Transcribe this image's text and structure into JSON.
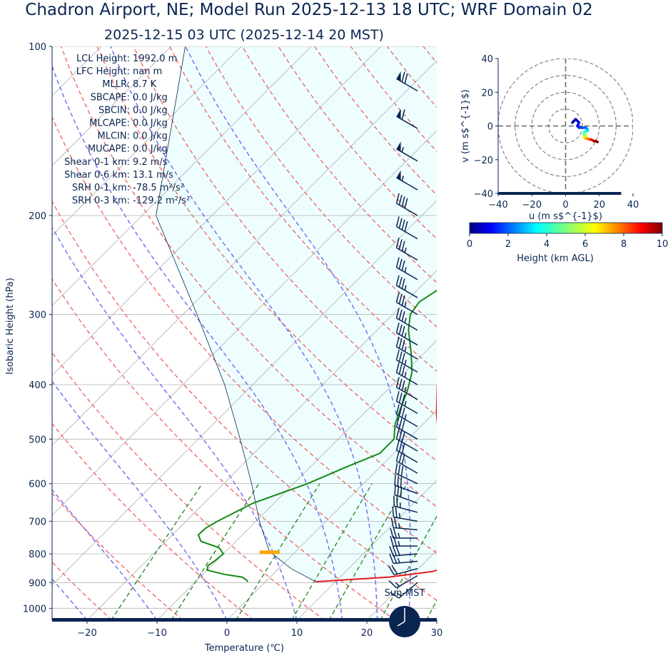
{
  "title": "Chadron Airport, NE; Model Run 2025-12-13 18 UTC; WRF Domain 02",
  "subtitle": "2025-12-15 03 UTC  (2025-12-14 20 MST)",
  "colors": {
    "text": "#0a2552",
    "temperature": "#e31a1c",
    "dewpoint": "#138a13",
    "dry_adiabat": "#f26b6b",
    "moist_adiabat": "#6b6bf0",
    "mixing_ratio": "#2b8a2b",
    "cape_shading": "#eefefe",
    "lcl_marker": "#ffa500",
    "wind_barb": "#0a2552"
  },
  "indices": [
    {
      "label": "LCL Height",
      "value": "1992.0 m"
    },
    {
      "label": "LFC Height",
      "value": "nan m"
    },
    {
      "label": "MLLR",
      "value": "8.7 K"
    },
    {
      "label": "SBCAPE",
      "value": "0.0 J/kg"
    },
    {
      "label": "SBCIN",
      "value": "0.0 J/kg"
    },
    {
      "label": "MLCAPE",
      "value": "0.0 J/kg"
    },
    {
      "label": "MLCIN",
      "value": "0.0 J/kg"
    },
    {
      "label": "MUCAPE",
      "value": "0.0 J/kg"
    },
    {
      "label": "Shear 0-1 km",
      "value": "9.2 m/s"
    },
    {
      "label": "Shear 0-6 km",
      "value": "13.1 m/s"
    },
    {
      "label": "SRH 0-1 km",
      "value": "-78.5 m²/s²"
    },
    {
      "label": "SRH 0-3 km",
      "value": "-129.2 m²/s²"
    }
  ],
  "clock_label": "Sun-MST",
  "chart_data": [
    {
      "type": "skew-t",
      "xlabel": "Temperature (℃)",
      "ylabel": "Isobaric Height (hPa)",
      "xlim": [
        -25,
        30
      ],
      "ylim": [
        1050,
        100
      ],
      "y_log": true,
      "grid": true,
      "x_ticks": [
        -20,
        -10,
        0,
        10,
        20,
        30
      ],
      "y_ticks": [
        100,
        200,
        300,
        400,
        500,
        600,
        700,
        800,
        900,
        1000
      ],
      "lcl_pressure": 795,
      "series": [
        {
          "name": "Temperature",
          "points": [
            [
              897,
              7.2
            ],
            [
              880,
              17
            ],
            [
              860,
              22.5
            ],
            [
              840,
              24
            ],
            [
              820,
              23.6
            ],
            [
              800,
              22.4
            ],
            [
              780,
              22.5
            ],
            [
              760,
              22.6
            ],
            [
              740,
              22.6
            ],
            [
              720,
              22
            ],
            [
              700,
              20.2
            ],
            [
              650,
              16
            ],
            [
              600,
              12.2
            ],
            [
              550,
              8
            ],
            [
              500,
              4.4
            ],
            [
              450,
              0.4
            ],
            [
              400,
              -3.6
            ],
            [
              350,
              -6.6
            ],
            [
              320,
              -8.2
            ],
            [
              290,
              -9.1
            ],
            [
              270,
              -9.6
            ],
            [
              250,
              -10
            ],
            [
              228,
              -8.8
            ],
            [
              210,
              -7.5
            ],
            [
              190,
              -5.8
            ],
            [
              170,
              -3
            ],
            [
              150,
              -0.2
            ],
            [
              130,
              3
            ],
            [
              120,
              4.8
            ],
            [
              110,
              6.8
            ],
            [
              100,
              8.8
            ]
          ]
        },
        {
          "name": "Dewpoint",
          "points": [
            [
              897,
              -2.5
            ],
            [
              890,
              -3
            ],
            [
              880,
              -4
            ],
            [
              870,
              -7
            ],
            [
              855,
              -10
            ],
            [
              840,
              -10.5
            ],
            [
              820,
              -10.2
            ],
            [
              800,
              -10
            ],
            [
              780,
              -11.5
            ],
            [
              760,
              -15
            ],
            [
              740,
              -16.3
            ],
            [
              720,
              -16.2
            ],
            [
              700,
              -15.5
            ],
            [
              650,
              -13
            ],
            [
              600,
              -8
            ],
            [
              560,
              -4.8
            ],
            [
              530,
              -2
            ],
            [
              500,
              -2
            ],
            [
              470,
              -4
            ],
            [
              440,
              -5.5
            ],
            [
              410,
              -7
            ],
            [
              380,
              -9
            ],
            [
              350,
              -12
            ],
            [
              320,
              -15.5
            ],
            [
              300,
              -17.5
            ],
            [
              285,
              -18
            ],
            [
              270,
              -17
            ],
            [
              250,
              -16.4
            ],
            [
              230,
              -15.8
            ],
            [
              210,
              -15.9
            ],
            [
              190,
              -15.7
            ],
            [
              180,
              -15
            ],
            [
              170,
              -13
            ],
            [
              160,
              -10
            ],
            [
              150,
              -7.5
            ],
            [
              140,
              -5
            ],
            [
              130,
              -2.5
            ],
            [
              120,
              0
            ],
            [
              110,
              2.5
            ],
            [
              100,
              5
            ]
          ]
        },
        {
          "name": "Parcel",
          "points": [
            [
              897,
              7.2
            ],
            [
              850,
              1.8
            ],
            [
              800,
              -3
            ],
            [
              795,
              -3.6
            ],
            [
              700,
              -9.5
            ],
            [
              600,
              -16
            ],
            [
              500,
              -24
            ],
            [
              400,
              -34
            ],
            [
              300,
              -48
            ],
            [
              200,
              -68
            ],
            [
              100,
              -88
            ]
          ]
        }
      ],
      "wind_barbs": [
        {
          "p": 100,
          "dir": 300,
          "speed_kt": 75
        },
        {
          "p": 120,
          "dir": 300,
          "speed_kt": 70
        },
        {
          "p": 140,
          "dir": 300,
          "speed_kt": 60
        },
        {
          "p": 160,
          "dir": 300,
          "speed_kt": 55
        },
        {
          "p": 180,
          "dir": 300,
          "speed_kt": 55
        },
        {
          "p": 200,
          "dir": 300,
          "speed_kt": 40
        },
        {
          "p": 220,
          "dir": 300,
          "speed_kt": 40
        },
        {
          "p": 240,
          "dir": 300,
          "speed_kt": 35
        },
        {
          "p": 260,
          "dir": 300,
          "speed_kt": 35
        },
        {
          "p": 280,
          "dir": 300,
          "speed_kt": 35
        },
        {
          "p": 300,
          "dir": 300,
          "speed_kt": 35
        },
        {
          "p": 320,
          "dir": 300,
          "speed_kt": 35
        },
        {
          "p": 340,
          "dir": 300,
          "speed_kt": 35
        },
        {
          "p": 360,
          "dir": 300,
          "speed_kt": 35
        },
        {
          "p": 380,
          "dir": 300,
          "speed_kt": 35
        },
        {
          "p": 400,
          "dir": 300,
          "speed_kt": 35
        },
        {
          "p": 425,
          "dir": 300,
          "speed_kt": 35
        },
        {
          "p": 450,
          "dir": 300,
          "speed_kt": 35
        },
        {
          "p": 475,
          "dir": 300,
          "speed_kt": 35
        },
        {
          "p": 500,
          "dir": 300,
          "speed_kt": 30
        },
        {
          "p": 525,
          "dir": 300,
          "speed_kt": 30
        },
        {
          "p": 550,
          "dir": 300,
          "speed_kt": 30
        },
        {
          "p": 575,
          "dir": 300,
          "speed_kt": 30
        },
        {
          "p": 600,
          "dir": 295,
          "speed_kt": 30
        },
        {
          "p": 625,
          "dir": 290,
          "speed_kt": 30
        },
        {
          "p": 650,
          "dir": 290,
          "speed_kt": 30
        },
        {
          "p": 675,
          "dir": 285,
          "speed_kt": 25
        },
        {
          "p": 700,
          "dir": 280,
          "speed_kt": 25
        },
        {
          "p": 725,
          "dir": 275,
          "speed_kt": 25
        },
        {
          "p": 750,
          "dir": 270,
          "speed_kt": 25
        },
        {
          "p": 775,
          "dir": 270,
          "speed_kt": 25
        },
        {
          "p": 800,
          "dir": 265,
          "speed_kt": 30
        },
        {
          "p": 825,
          "dir": 265,
          "speed_kt": 25
        },
        {
          "p": 850,
          "dir": 255,
          "speed_kt": 20
        },
        {
          "p": 875,
          "dir": 240,
          "speed_kt": 15
        },
        {
          "p": 900,
          "dir": 230,
          "speed_kt": 15
        }
      ]
    },
    {
      "type": "hodograph",
      "xlabel": "u (m s$^{-1}$)",
      "ylabel": "v (m s$^{-1}$)",
      "xlim": [
        -40,
        40
      ],
      "ylim": [
        -40,
        40
      ],
      "x_ticks": [
        -40,
        -20,
        0,
        20,
        40
      ],
      "y_ticks": [
        40,
        20,
        0,
        -20,
        -40
      ],
      "rings": [
        10,
        20,
        30,
        40
      ],
      "points": [
        {
          "u": 4,
          "v": 2,
          "h": 0.05
        },
        {
          "u": 5,
          "v": 3,
          "h": 0.2
        },
        {
          "u": 6,
          "v": 4,
          "h": 0.4
        },
        {
          "u": 7,
          "v": 3,
          "h": 0.6
        },
        {
          "u": 8,
          "v": 2,
          "h": 0.8
        },
        {
          "u": 7,
          "v": 0,
          "h": 1.0
        },
        {
          "u": 8,
          "v": -1,
          "h": 1.2
        },
        {
          "u": 10,
          "v": -1,
          "h": 1.5
        },
        {
          "u": 12,
          "v": -1,
          "h": 1.8
        },
        {
          "u": 13,
          "v": -2,
          "h": 2.2
        },
        {
          "u": 13,
          "v": -3,
          "h": 2.7
        },
        {
          "u": 12,
          "v": -3,
          "h": 3.2
        },
        {
          "u": 11,
          "v": -3.5,
          "h": 3.7
        },
        {
          "u": 11,
          "v": -5,
          "h": 4.2
        },
        {
          "u": 12,
          "v": -5,
          "h": 4.7
        },
        {
          "u": 12,
          "v": -6,
          "h": 5.2
        },
        {
          "u": 11,
          "v": -6.5,
          "h": 5.7
        },
        {
          "u": 11,
          "v": -7,
          "h": 6.2
        },
        {
          "u": 12,
          "v": -7.5,
          "h": 6.7
        },
        {
          "u": 13,
          "v": -7.5,
          "h": 7.2
        },
        {
          "u": 14,
          "v": -8,
          "h": 7.7
        },
        {
          "u": 15,
          "v": -8,
          "h": 8.2
        },
        {
          "u": 16,
          "v": -8.5,
          "h": 8.7
        },
        {
          "u": 17,
          "v": -9,
          "h": 9.2
        },
        {
          "u": 18,
          "v": -9,
          "h": 9.7
        },
        {
          "u": 19,
          "v": -9.5,
          "h": 10
        }
      ]
    },
    {
      "type": "colorbar",
      "xlabel": "Height (km AGL)",
      "range": [
        0,
        10
      ],
      "ticks": [
        0,
        2,
        4,
        6,
        8,
        10
      ],
      "colormap": "jet"
    }
  ]
}
